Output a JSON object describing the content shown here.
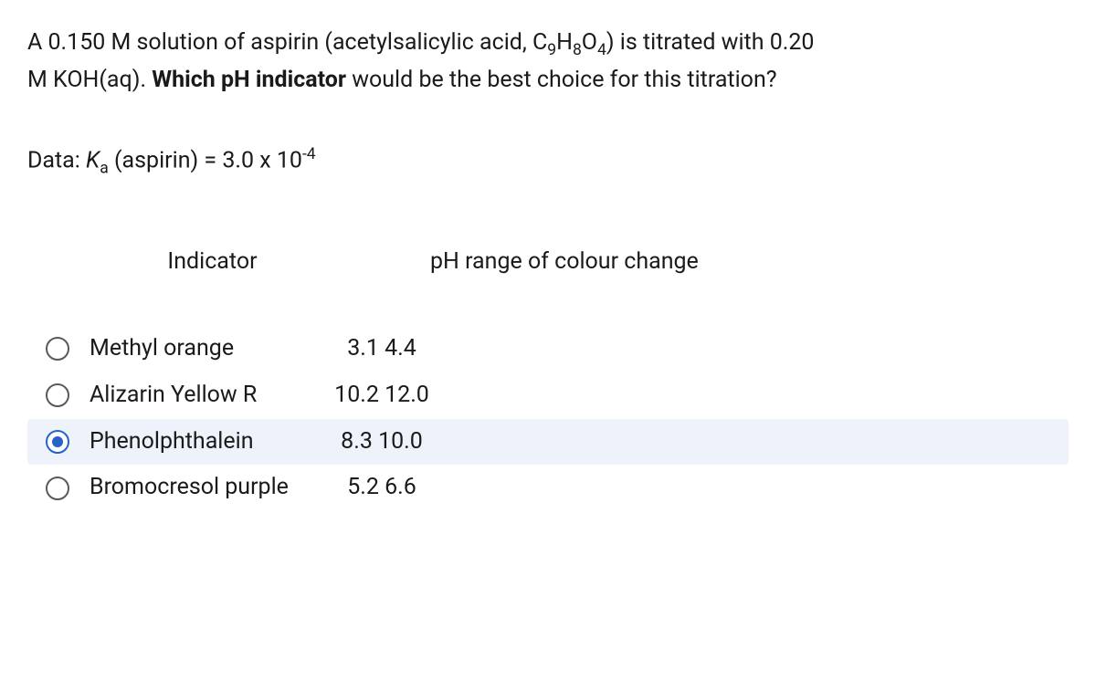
{
  "question": {
    "line1_prefix": "A 0.150 M solution of aspirin (acetylsalicylic acid, C",
    "line1_formula_sub1": "9",
    "line1_mid1": "H",
    "line1_formula_sub2": "8",
    "line1_mid2": "O",
    "line1_formula_sub3": "4",
    "line1_suffix": ") is titrated with 0.20",
    "line2_prefix": "M KOH(aq). ",
    "line2_bold": "Which pH indicator",
    "line2_suffix": " would be the best choice for this titration?"
  },
  "data_line": {
    "prefix": "Data: ",
    "ka_symbol": "K",
    "ka_sub": "a",
    "mid": " (aspirin) = 3.0 x 10",
    "exp": "-4"
  },
  "headers": {
    "indicator": "Indicator",
    "ph_range": "pH range of colour change"
  },
  "options": [
    {
      "name": "Methyl orange",
      "range": "3.1  4.4",
      "selected": false
    },
    {
      "name": "Alizarin Yellow R",
      "range": "10.2  12.0",
      "selected": false
    },
    {
      "name": "Phenolphthalein",
      "range": "8.3  10.0",
      "selected": true
    },
    {
      "name": "Bromocresol purple",
      "range": "5.2  6.6",
      "selected": false
    }
  ],
  "colors": {
    "text": "#1a1a1a",
    "selected_bg": "#eef3fb",
    "radio_border": "#5a5a5a",
    "radio_selected": "#2563c9",
    "background": "#ffffff"
  }
}
